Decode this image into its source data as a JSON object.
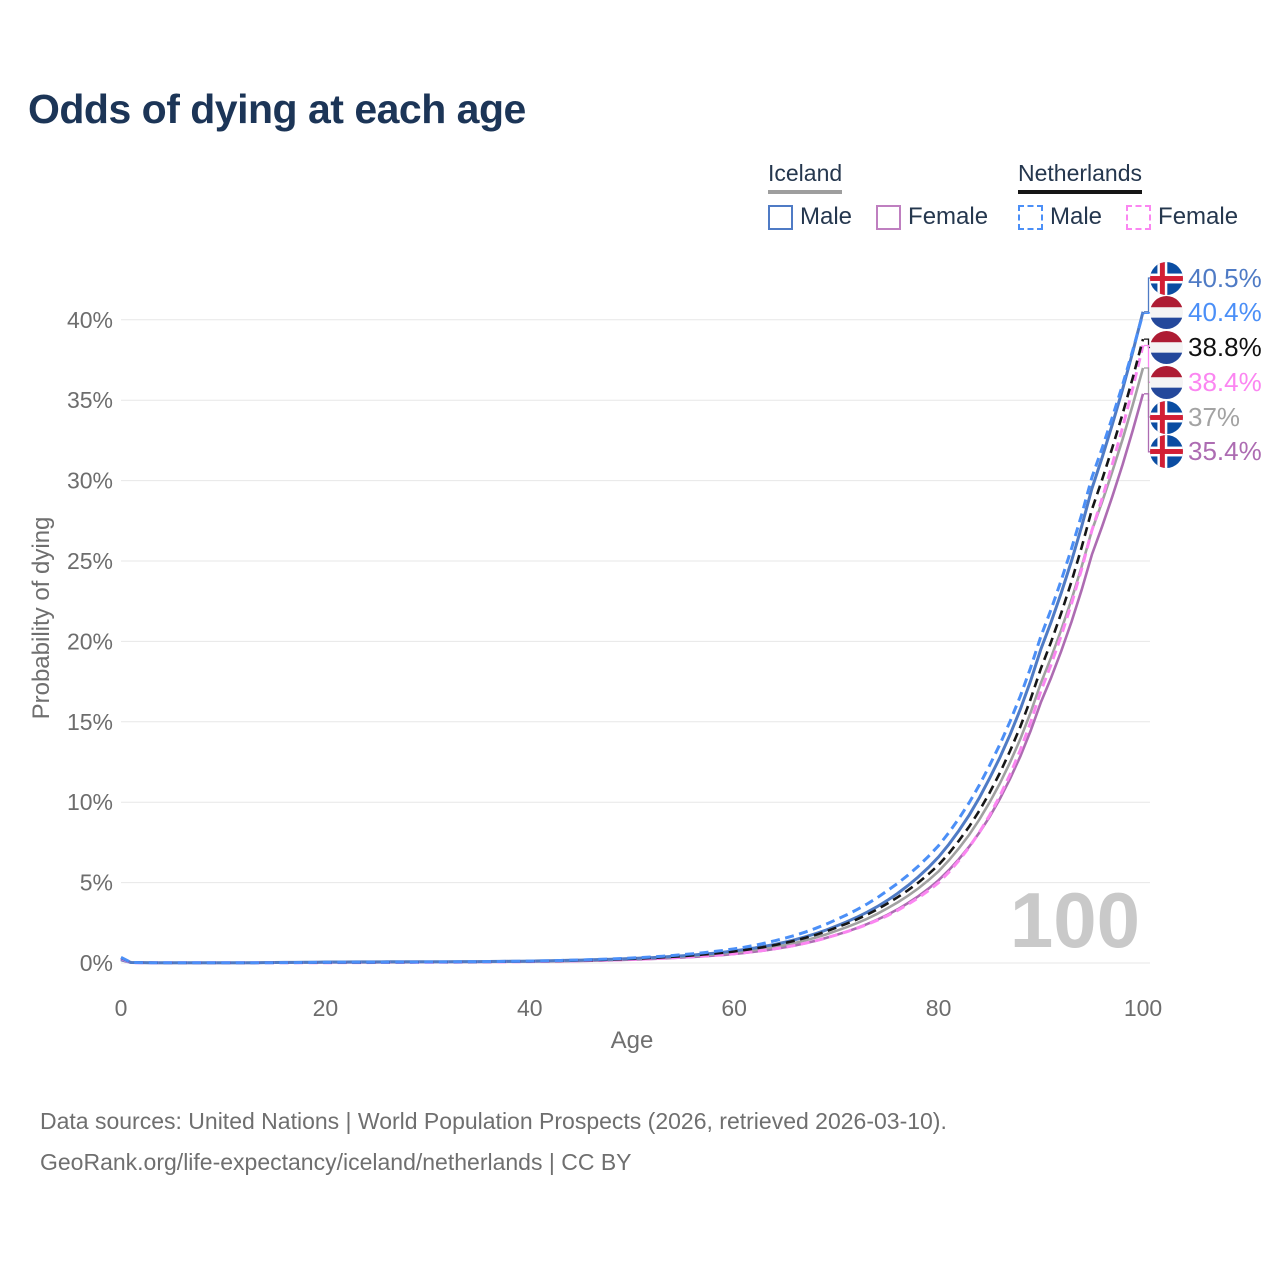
{
  "header": {
    "title": "Odds of dying at each age"
  },
  "legend": {
    "groups": [
      {
        "title": "Iceland",
        "line_style": "solid",
        "underline_color": "#9e9e9e",
        "items": [
          {
            "label": "Male",
            "color": "#4f7bc5"
          },
          {
            "label": "Female",
            "color": "#bf7fc0"
          }
        ]
      },
      {
        "title": "Netherlands",
        "line_style": "dashed",
        "underline_color": "#161616",
        "items": [
          {
            "label": "Male",
            "color": "#4b8ff7"
          },
          {
            "label": "Female",
            "color": "#fb86f1"
          }
        ]
      }
    ]
  },
  "chart_data": {
    "type": "line",
    "title": "Odds of dying at each age",
    "xlabel": "Age",
    "ylabel": "Probability of dying",
    "xlim": [
      0,
      100
    ],
    "ylim": [
      0,
      42.5
    ],
    "x_ticks": [
      0,
      20,
      40,
      60,
      80,
      100
    ],
    "y_ticks": [
      0,
      5,
      10,
      15,
      20,
      25,
      30,
      35,
      40
    ],
    "y_tick_labels": [
      "0%",
      "5%",
      "10%",
      "15%",
      "20%",
      "25%",
      "30%",
      "35%",
      "40%"
    ],
    "grid": "horizontal",
    "legend_position": "top-right",
    "watermark": "100",
    "ages": [
      0,
      1,
      5,
      10,
      15,
      20,
      25,
      30,
      35,
      40,
      45,
      50,
      55,
      60,
      65,
      70,
      75,
      80,
      85,
      90,
      95,
      100
    ],
    "series": [
      {
        "id": "iceland-male",
        "country": "Iceland",
        "flag": "is",
        "sex": "Male",
        "style": "solid",
        "color": "#4f7bc5",
        "label_color": "#4f7bc5",
        "width": 3,
        "end_label": "40.5%",
        "values": [
          0.22,
          0.03,
          0.01,
          0.01,
          0.03,
          0.06,
          0.07,
          0.08,
          0.09,
          0.12,
          0.18,
          0.28,
          0.45,
          0.75,
          1.3,
          2.3,
          3.9,
          6.6,
          11.5,
          19.5,
          29.5,
          40.5
        ]
      },
      {
        "id": "netherlands-male",
        "country": "Netherlands",
        "flag": "nl",
        "sex": "Male",
        "style": "dashed",
        "color": "#4b8ff7",
        "label_color": "#4b8ff7",
        "width": 3,
        "end_label": "40.4%",
        "values": [
          0.35,
          0.03,
          0.01,
          0.01,
          0.02,
          0.04,
          0.05,
          0.06,
          0.08,
          0.12,
          0.19,
          0.31,
          0.52,
          0.88,
          1.55,
          2.7,
          4.5,
          7.3,
          12.3,
          20.3,
          30.2,
          40.4
        ]
      },
      {
        "id": "netherlands-all",
        "country": "Netherlands",
        "flag": "nl",
        "sex": "All",
        "style": "dashed",
        "color": "#161616",
        "label_color": "#111111",
        "width": 2.6,
        "end_label": "38.8%",
        "values": [
          0.32,
          0.03,
          0.01,
          0.01,
          0.02,
          0.03,
          0.04,
          0.05,
          0.07,
          0.1,
          0.16,
          0.26,
          0.43,
          0.72,
          1.25,
          2.2,
          3.7,
          6.1,
          10.6,
          18.3,
          28.2,
          38.8
        ]
      },
      {
        "id": "netherlands-female",
        "country": "Netherlands",
        "flag": "nl",
        "sex": "Female",
        "style": "dashed",
        "color": "#fb86f1",
        "label_color": "#fb86f1",
        "width": 3,
        "end_label": "38.4%",
        "values": [
          0.28,
          0.02,
          0.01,
          0.01,
          0.015,
          0.02,
          0.03,
          0.04,
          0.06,
          0.09,
          0.14,
          0.22,
          0.36,
          0.58,
          0.98,
          1.75,
          2.95,
          5.0,
          9.2,
          16.9,
          26.9,
          38.4
        ]
      },
      {
        "id": "iceland-all",
        "country": "Iceland",
        "flag": "is",
        "sex": "All",
        "style": "solid",
        "color": "#a1a1a1",
        "label_color": "#a3a3a3",
        "width": 2.6,
        "end_label": "37%",
        "values": [
          0.2,
          0.02,
          0.01,
          0.01,
          0.025,
          0.045,
          0.055,
          0.065,
          0.08,
          0.1,
          0.16,
          0.25,
          0.4,
          0.65,
          1.12,
          2.0,
          3.4,
          5.7,
          10.0,
          17.4,
          26.9,
          37.0
        ]
      },
      {
        "id": "iceland-female",
        "country": "Iceland",
        "flag": "is",
        "sex": "Female",
        "style": "solid",
        "color": "#ad6cb2",
        "label_color": "#ad6cb2",
        "width": 2.6,
        "end_label": "35.4%",
        "values": [
          0.18,
          0.02,
          0.01,
          0.01,
          0.02,
          0.03,
          0.04,
          0.05,
          0.07,
          0.09,
          0.13,
          0.21,
          0.34,
          0.56,
          0.98,
          1.75,
          3.0,
          5.15,
          9.1,
          16.2,
          25.4,
          35.4
        ]
      }
    ]
  },
  "icons": {
    "iceland_flag": "circle with blue field and red Nordic cross outlined in white",
    "netherlands_flag": "circle with horizontal red-white-blue tricolor"
  },
  "footer": {
    "line1": "Data sources: United Nations | World Population Prospects (2026, retrieved 2026-03-10).",
    "line2": "GeoRank.org/life-expectancy/iceland/netherlands | CC BY"
  }
}
